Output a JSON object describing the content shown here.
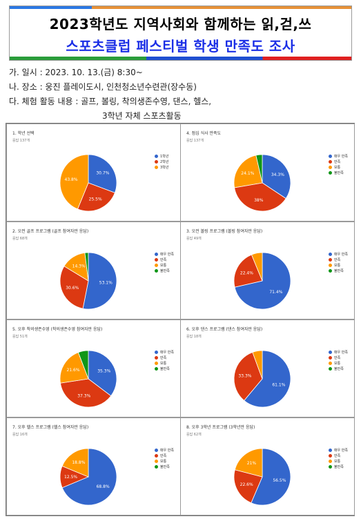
{
  "header": {
    "title_line1": "2023학년도 지역사회와 함께하는 읽,걷,쓰",
    "title_line2": "스포츠클럽 페스티벌 학생 만족도 조사"
  },
  "info": {
    "line1": "가. 일시 : 2023. 10. 13.(금) 8:30~",
    "line2": "나. 장소 : 웅진 플레이도시, 인천청소년수련관(장수동)",
    "line3": "다. 체험 활동 내용 : 골프, 볼링, 착의생존수영, 댄스, 헬스,",
    "line4": "3학년 자체 스포츠활동"
  },
  "colors": {
    "very_satisfied": "#3366cc",
    "satisfied": "#dc3912",
    "neutral": "#ff9900",
    "dissatisfied": "#109618"
  },
  "chart_data": [
    {
      "type": "pie",
      "title": "1. 학년 선택",
      "subtitle": "응답 137개",
      "categories": [
        "1학년",
        "2학년",
        "3학년"
      ],
      "values": [
        30.7,
        25.5,
        43.8
      ],
      "labels": [
        "30.7%",
        "25.5%",
        "43.8%"
      ],
      "colors": [
        "#3366cc",
        "#dc3912",
        "#ff9900"
      ]
    },
    {
      "type": "pie",
      "title": "4. 점심 식사 만족도",
      "subtitle": "응답 137개",
      "categories": [
        "매우 만족",
        "만족",
        "보통",
        "불만족"
      ],
      "values": [
        34.3,
        38,
        24.1,
        3.6
      ],
      "labels": [
        "34.3%",
        "38%",
        "24.1%",
        ""
      ],
      "colors": [
        "#3366cc",
        "#dc3912",
        "#ff9900",
        "#109618"
      ]
    },
    {
      "type": "pie",
      "title": "2. 오전 골프 프로그램 (골프 참여자만 응답)",
      "subtitle": "응답 68개",
      "categories": [
        "매우 만족",
        "만족",
        "보통",
        "불만족"
      ],
      "values": [
        53.1,
        30.6,
        14.3,
        2
      ],
      "labels": [
        "53.1%",
        "30.6%",
        "14.3%",
        ""
      ],
      "colors": [
        "#3366cc",
        "#dc3912",
        "#ff9900",
        "#109618"
      ]
    },
    {
      "type": "pie",
      "title": "3. 오전 볼링 프로그램 (볼링 참여자만 응답)",
      "subtitle": "응답 49개",
      "categories": [
        "매우 만족",
        "만족",
        "보통",
        "불만족"
      ],
      "values": [
        71.4,
        22.4,
        6.2,
        0
      ],
      "labels": [
        "71.4%",
        "22.4%",
        "",
        ""
      ],
      "colors": [
        "#3366cc",
        "#dc3912",
        "#ff9900",
        "#109618"
      ]
    },
    {
      "type": "pie",
      "title": "5. 오후 착의생존수영 (착의생존수영 참여자만 응답)",
      "subtitle": "응답 51개",
      "categories": [
        "매우 만족",
        "만족",
        "보통",
        "불만족"
      ],
      "values": [
        35.3,
        37.3,
        21.6,
        5.8
      ],
      "labels": [
        "35.3%",
        "37.3%",
        "21.6%",
        ""
      ],
      "colors": [
        "#3366cc",
        "#dc3912",
        "#ff9900",
        "#109618"
      ]
    },
    {
      "type": "pie",
      "title": "6. 오후 댄스 프로그램 (댄스 참여자만 응답)",
      "subtitle": "응답 18개",
      "categories": [
        "매우 만족",
        "만족",
        "보통",
        "불만족"
      ],
      "values": [
        61.1,
        33.3,
        5.6,
        0
      ],
      "labels": [
        "61.1%",
        "33.3%",
        "",
        ""
      ],
      "colors": [
        "#3366cc",
        "#dc3912",
        "#ff9900",
        "#109618"
      ]
    },
    {
      "type": "pie",
      "title": "7. 오후 헬스 프로그램 (헬스 참여자만 응답)",
      "subtitle": "응답 16개",
      "categories": [
        "매우 만족",
        "만족",
        "보통",
        "불만족"
      ],
      "values": [
        68.8,
        12.5,
        18.8,
        0
      ],
      "labels": [
        "68.8%",
        "12.5%",
        "18.8%",
        ""
      ],
      "colors": [
        "#3366cc",
        "#dc3912",
        "#ff9900",
        "#109618"
      ]
    },
    {
      "type": "pie",
      "title": "8. 오후 3학년 프로그램 (3학년만 응답)",
      "subtitle": "응답 62개",
      "categories": [
        "매우 만족",
        "만족",
        "보통",
        "불만족"
      ],
      "values": [
        56.5,
        22.6,
        21,
        0
      ],
      "labels": [
        "56.5%",
        "22.6%",
        "21%",
        ""
      ],
      "colors": [
        "#3366cc",
        "#dc3912",
        "#ff9900",
        "#109618"
      ]
    }
  ]
}
